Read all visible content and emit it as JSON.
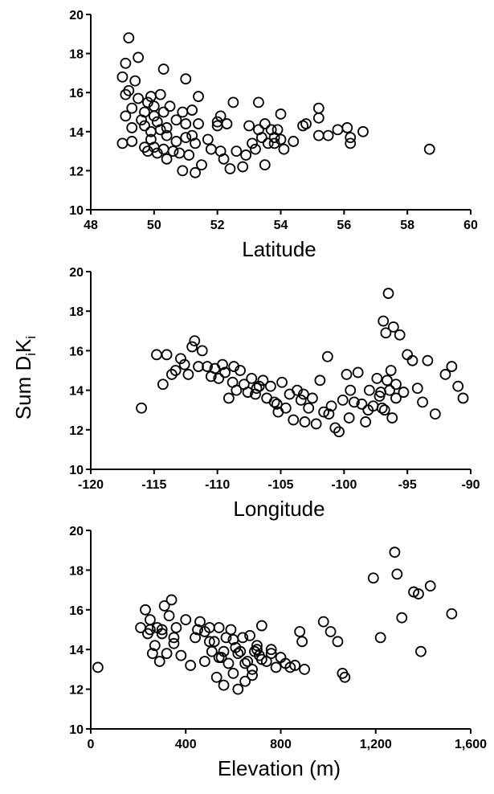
{
  "ylabel": {
    "base": "Sum D",
    "sub1": "i",
    "mid": "K",
    "sub2": "i"
  },
  "chart_data": [
    {
      "type": "scatter",
      "xlabel": "Latitude",
      "xlim": [
        48,
        60
      ],
      "ylim": [
        10,
        20
      ],
      "xticks": [
        48,
        50,
        52,
        54,
        56,
        58,
        60
      ],
      "xtick_labels": [
        "48",
        "50",
        "52",
        "54",
        "56",
        "58",
        "60"
      ],
      "yticks": [
        10,
        12,
        14,
        16,
        18,
        20
      ],
      "ytick_labels": [
        "10",
        "12",
        "14",
        "16",
        "18",
        "20"
      ],
      "grid": false,
      "x": [
        49.0,
        49.0,
        49.1,
        49.1,
        49.1,
        49.2,
        49.2,
        49.3,
        49.3,
        49.3,
        49.4,
        49.5,
        49.5,
        49.6,
        49.7,
        49.7,
        49.7,
        49.8,
        49.8,
        49.9,
        49.9,
        49.9,
        50.0,
        50.0,
        50.0,
        50.1,
        50.1,
        50.2,
        50.2,
        50.3,
        50.3,
        50.3,
        50.4,
        50.4,
        50.4,
        50.5,
        50.6,
        50.7,
        50.7,
        50.8,
        50.9,
        50.9,
        51.0,
        51.0,
        51.0,
        51.1,
        51.2,
        51.2,
        51.3,
        51.3,
        51.4,
        51.4,
        51.5,
        51.7,
        51.8,
        52.0,
        52.0,
        52.1,
        52.1,
        52.2,
        52.3,
        52.4,
        52.5,
        52.6,
        52.8,
        52.9,
        53.0,
        53.1,
        53.2,
        53.3,
        53.3,
        53.4,
        53.5,
        53.5,
        53.6,
        53.7,
        53.8,
        53.8,
        53.9,
        54.0,
        54.0,
        54.1,
        54.4,
        54.7,
        54.8,
        55.2,
        55.2,
        55.2,
        55.5,
        55.8,
        56.1,
        56.2,
        56.2,
        56.6,
        58.7
      ],
      "y": [
        16.8,
        13.4,
        15.9,
        17.5,
        14.8,
        18.8,
        16.1,
        15.2,
        14.2,
        13.5,
        16.6,
        17.8,
        15.7,
        14.6,
        13.2,
        15.0,
        14.3,
        13.0,
        15.5,
        14.0,
        15.8,
        13.6,
        14.8,
        15.3,
        13.2,
        14.5,
        12.9,
        15.9,
        14.1,
        17.2,
        13.1,
        15.0,
        13.8,
        12.6,
        14.2,
        15.3,
        13.0,
        14.6,
        13.5,
        12.9,
        15.0,
        12.0,
        16.7,
        13.7,
        14.4,
        12.8,
        13.8,
        15.1,
        13.4,
        11.9,
        14.4,
        15.8,
        12.3,
        13.6,
        13.1,
        14.5,
        14.3,
        14.8,
        13.0,
        12.6,
        14.4,
        12.1,
        15.5,
        13.0,
        12.2,
        12.8,
        14.3,
        13.4,
        13.1,
        15.5,
        14.1,
        13.7,
        14.4,
        12.3,
        13.4,
        14.1,
        13.7,
        13.4,
        14.1,
        14.9,
        13.6,
        13.1,
        13.5,
        14.3,
        14.4,
        15.2,
        14.7,
        13.8,
        13.8,
        14.1,
        14.2,
        13.7,
        13.4,
        14.0,
        13.1
      ]
    },
    {
      "type": "scatter",
      "xlabel": "Longitude",
      "xlim": [
        -120,
        -90
      ],
      "ylim": [
        10,
        20
      ],
      "xticks": [
        -120,
        -115,
        -110,
        -105,
        -100,
        -95,
        -90
      ],
      "xtick_labels": [
        "-120",
        "-115",
        "-110",
        "-105",
        "-100",
        "-95",
        "-90"
      ],
      "yticks": [
        10,
        12,
        14,
        16,
        18,
        20
      ],
      "ytick_labels": [
        "10",
        "12",
        "14",
        "16",
        "18",
        "20"
      ],
      "grid": false,
      "x": [
        -116.0,
        -114.8,
        -114.3,
        -114.0,
        -113.6,
        -113.3,
        -112.9,
        -112.6,
        -112.3,
        -112.0,
        -111.8,
        -111.5,
        -111.2,
        -110.8,
        -110.5,
        -110.2,
        -109.9,
        -109.6,
        -109.4,
        -109.1,
        -108.8,
        -108.5,
        -108.2,
        -107.9,
        -107.6,
        -107.3,
        -107.0,
        -106.7,
        -106.4,
        -106.1,
        -105.8,
        -105.5,
        -105.2,
        -104.9,
        -104.6,
        -104.3,
        -104.0,
        -103.7,
        -103.4,
        -103.1,
        -102.8,
        -102.5,
        -102.2,
        -101.9,
        -101.6,
        -101.3,
        -101.0,
        -100.7,
        -100.4,
        -100.1,
        -99.8,
        -99.5,
        -99.2,
        -98.9,
        -98.6,
        -98.3,
        -98.0,
        -97.7,
        -97.4,
        -97.1,
        -96.9,
        -96.7,
        -96.5,
        -96.3,
        -96.1,
        -95.9,
        -95.6,
        -95.3,
        -95.0,
        -94.6,
        -94.2,
        -93.8,
        -93.4,
        -92.8,
        -92.0,
        -91.5,
        -91.0,
        -90.6,
        -96.8,
        -96.6,
        -96.2,
        -97.0,
        -96.4,
        -95.9,
        -108.7,
        -106.9,
        -105.3,
        -103.2,
        -101.2,
        -99.6,
        -98.1,
        -97.2
      ],
      "y": [
        13.1,
        15.8,
        14.3,
        15.8,
        14.8,
        15.0,
        15.6,
        15.3,
        14.8,
        16.2,
        16.5,
        15.2,
        16.0,
        15.2,
        14.7,
        15.1,
        14.6,
        15.3,
        14.9,
        13.6,
        14.4,
        14.0,
        15.0,
        14.3,
        13.9,
        14.6,
        13.8,
        14.2,
        14.5,
        13.6,
        14.2,
        13.4,
        12.9,
        14.4,
        13.1,
        13.8,
        12.5,
        14.0,
        13.5,
        12.4,
        13.1,
        13.6,
        12.3,
        14.5,
        12.9,
        15.7,
        13.2,
        12.1,
        11.9,
        13.5,
        14.8,
        14.0,
        13.4,
        14.9,
        13.3,
        12.4,
        14.0,
        13.2,
        14.6,
        13.9,
        17.5,
        16.9,
        18.9,
        15.0,
        17.2,
        14.3,
        16.8,
        13.9,
        15.8,
        15.5,
        14.1,
        13.4,
        15.5,
        12.8,
        14.8,
        15.2,
        14.2,
        13.6,
        13.0,
        14.5,
        12.6,
        13.1,
        14.0,
        13.6,
        15.2,
        14.1,
        13.3,
        13.8,
        12.8,
        12.6,
        13.0,
        13.7
      ]
    },
    {
      "type": "scatter",
      "xlabel": "Elevation (m)",
      "xlim": [
        0,
        1600
      ],
      "ylim": [
        10,
        20
      ],
      "xticks": [
        0,
        400,
        800,
        1200,
        1600
      ],
      "xtick_labels": [
        "0",
        "400",
        "800",
        "1,200",
        "1,600"
      ],
      "yticks": [
        10,
        12,
        14,
        16,
        18,
        20
      ],
      "ytick_labels": [
        "10",
        "12",
        "14",
        "16",
        "18",
        "20"
      ],
      "grid": false,
      "x": [
        30,
        210,
        230,
        240,
        250,
        260,
        270,
        280,
        290,
        300,
        310,
        320,
        330,
        340,
        350,
        360,
        380,
        400,
        420,
        440,
        460,
        480,
        500,
        510,
        520,
        530,
        540,
        550,
        560,
        570,
        580,
        590,
        600,
        610,
        620,
        630,
        640,
        650,
        660,
        670,
        680,
        690,
        700,
        710,
        720,
        740,
        760,
        780,
        800,
        820,
        840,
        860,
        880,
        890,
        900,
        980,
        1010,
        1040,
        1060,
        1070,
        1190,
        1220,
        1280,
        1290,
        1310,
        1360,
        1380,
        1390,
        1430,
        1520,
        560,
        600,
        650,
        700,
        250,
        300,
        350,
        500,
        540,
        620,
        680,
        720,
        760,
        450,
        480
      ],
      "y": [
        13.1,
        15.1,
        16.0,
        14.8,
        15.5,
        13.8,
        14.2,
        15.1,
        13.4,
        14.8,
        16.2,
        13.8,
        15.7,
        16.5,
        14.6,
        15.1,
        13.7,
        15.5,
        13.2,
        14.6,
        15.4,
        13.4,
        15.1,
        13.9,
        14.4,
        12.6,
        15.1,
        13.6,
        12.2,
        14.6,
        13.3,
        15.0,
        12.8,
        14.1,
        12.0,
        13.9,
        14.6,
        12.4,
        13.4,
        14.7,
        12.7,
        13.9,
        14.2,
        13.7,
        15.2,
        13.4,
        13.8,
        13.1,
        13.6,
        13.3,
        13.1,
        13.2,
        14.9,
        14.4,
        13.0,
        15.4,
        14.9,
        14.4,
        12.8,
        12.6,
        17.6,
        14.6,
        18.9,
        17.8,
        15.6,
        16.9,
        16.8,
        13.9,
        17.2,
        15.8,
        13.9,
        14.5,
        13.3,
        14.0,
        15.0,
        15.0,
        14.3,
        14.4,
        13.6,
        13.8,
        13.0,
        13.5,
        14.0,
        15.0,
        14.9
      ]
    }
  ]
}
